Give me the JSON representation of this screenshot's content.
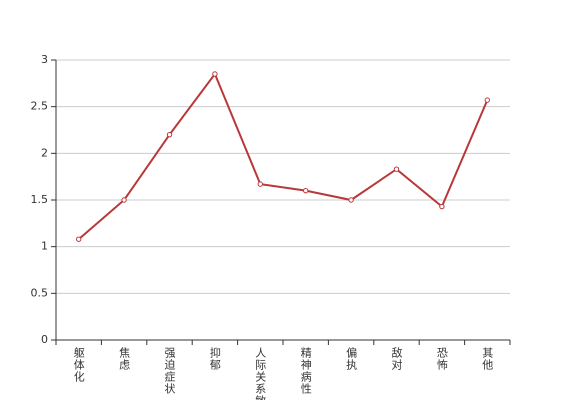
{
  "chart_data": {
    "type": "line",
    "categories": [
      "躯体化",
      "焦虑",
      "强迫症状",
      "抑郁",
      "人际关系敏感",
      "精神病性",
      "偏执",
      "敌对",
      "恐怖",
      "其他"
    ],
    "values": [
      1.08,
      1.5,
      2.2,
      2.85,
      1.67,
      1.6,
      1.5,
      1.83,
      1.43,
      2.57
    ],
    "color": "#b8383a",
    "ylim": [
      0,
      3
    ],
    "yticks": [
      0,
      0.5,
      1,
      1.5,
      2,
      2.5,
      3
    ],
    "grid": true
  }
}
